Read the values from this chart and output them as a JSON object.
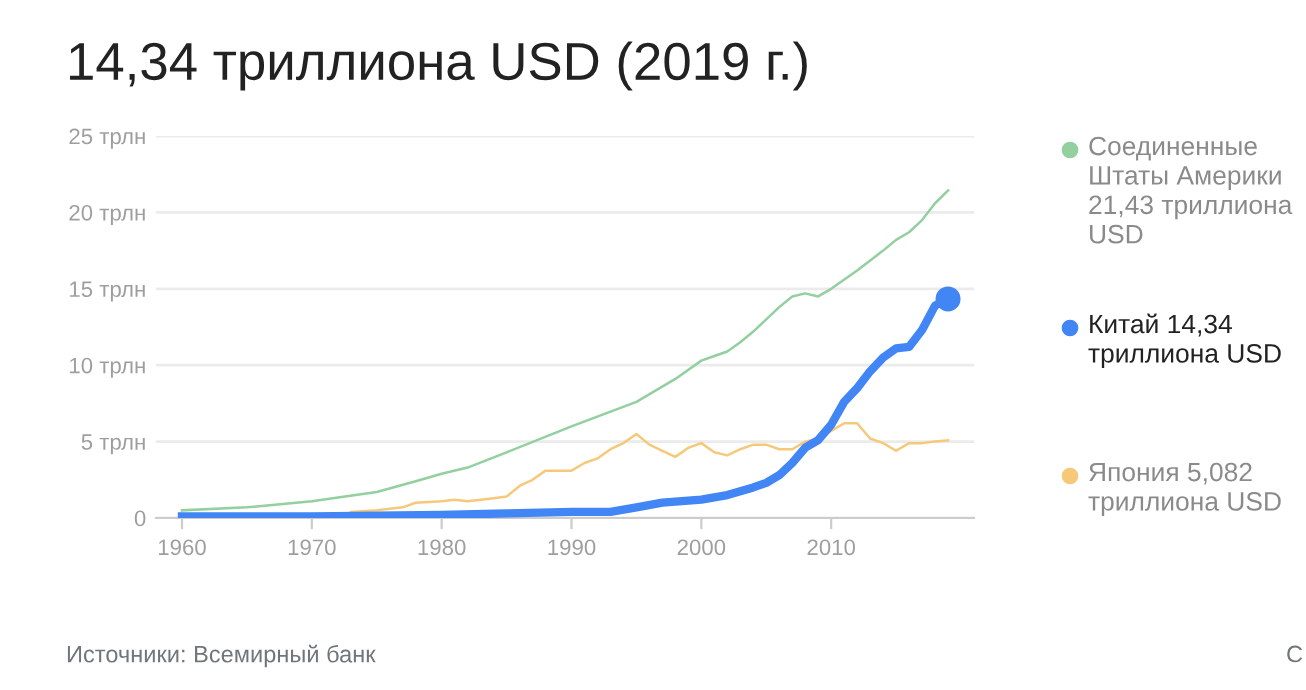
{
  "chart_data": {
    "type": "line",
    "title": "14,34 триллиона USD (2019 г.)",
    "annotations": [
      "Источники: Всемирный банк",
      "С"
    ],
    "xlim": [
      1958,
      2021
    ],
    "xticks": [
      1960,
      1970,
      1980,
      1990,
      2000,
      2010
    ],
    "ylim": [
      0,
      25
    ],
    "yticks": [
      0,
      {
        "value": 5,
        "label": "5 трлн"
      },
      {
        "value": 10,
        "label": "10 трлн"
      },
      {
        "value": 15,
        "label": "15 трлн"
      },
      {
        "value": 20,
        "label": "20 трлн"
      },
      {
        "value": 25,
        "label": "25 трлн"
      }
    ],
    "grid": "y",
    "legend": "right",
    "series": [
      {
        "name": "Соединенные Штаты Америки 21,43 триллиона USD",
        "color": "#93cf9f",
        "x": [
          1960,
          1965,
          1970,
          1975,
          1978,
          1980,
          1982,
          1985,
          1990,
          1995,
          1998,
          2000,
          2001,
          2002,
          2003,
          2004,
          2005,
          2006,
          2007,
          2008,
          2009,
          2010,
          2012,
          2014,
          2015,
          2016,
          2017,
          2018,
          2019
        ],
        "values": [
          0.5,
          0.7,
          1.1,
          1.7,
          2.4,
          2.9,
          3.3,
          4.3,
          6.0,
          7.6,
          9.1,
          10.3,
          10.6,
          10.9,
          11.5,
          12.2,
          13.0,
          13.8,
          14.5,
          14.7,
          14.5,
          15.0,
          16.2,
          17.5,
          18.2,
          18.7,
          19.5,
          20.6,
          21.43
        ]
      },
      {
        "name": "Китай 14,34 триллиона USD",
        "color": "#4285f4",
        "x": [
          1960,
          1970,
          1980,
          1985,
          1990,
          1993,
          1995,
          1997,
          2000,
          2002,
          2004,
          2005,
          2006,
          2007,
          2008,
          2009,
          2010,
          2011,
          2012,
          2013,
          2014,
          2015,
          2016,
          2017,
          2018,
          2019
        ],
        "values": [
          0.1,
          0.1,
          0.2,
          0.3,
          0.4,
          0.4,
          0.7,
          1.0,
          1.2,
          1.5,
          2.0,
          2.3,
          2.8,
          3.6,
          4.6,
          5.1,
          6.1,
          7.6,
          8.5,
          9.6,
          10.5,
          11.1,
          11.2,
          12.3,
          13.9,
          14.34
        ]
      },
      {
        "color": "#4285f4",
        "type": "scatter",
        "x": [
          2019
        ],
        "values": [
          14.34
        ]
      },
      {
        "name": "Япония 5,082 триллиона USD",
        "color": "#f6c97a",
        "x": [
          1973,
          1975,
          1977,
          1978,
          1980,
          1981,
          1982,
          1983,
          1984,
          1985,
          1986,
          1987,
          1988,
          1989,
          1990,
          1991,
          1992,
          1993,
          1994,
          1995,
          1996,
          1997,
          1998,
          1999,
          2000,
          2001,
          2002,
          2003,
          2004,
          2005,
          2006,
          2007,
          2008,
          2009,
          2010,
          2011,
          2012,
          2013,
          2014,
          2015,
          2016,
          2017,
          2018,
          2019
        ],
        "values": [
          0.4,
          0.5,
          0.7,
          1.0,
          1.1,
          1.2,
          1.1,
          1.2,
          1.3,
          1.4,
          2.1,
          2.5,
          3.1,
          3.1,
          3.1,
          3.6,
          3.9,
          4.5,
          4.9,
          5.5,
          4.8,
          4.4,
          4.0,
          4.6,
          4.9,
          4.3,
          4.1,
          4.5,
          4.8,
          4.8,
          4.5,
          4.5,
          5.0,
          5.2,
          5.7,
          6.2,
          6.2,
          5.2,
          4.9,
          4.4,
          4.9,
          4.9,
          5.0,
          5.082
        ]
      }
    ]
  }
}
